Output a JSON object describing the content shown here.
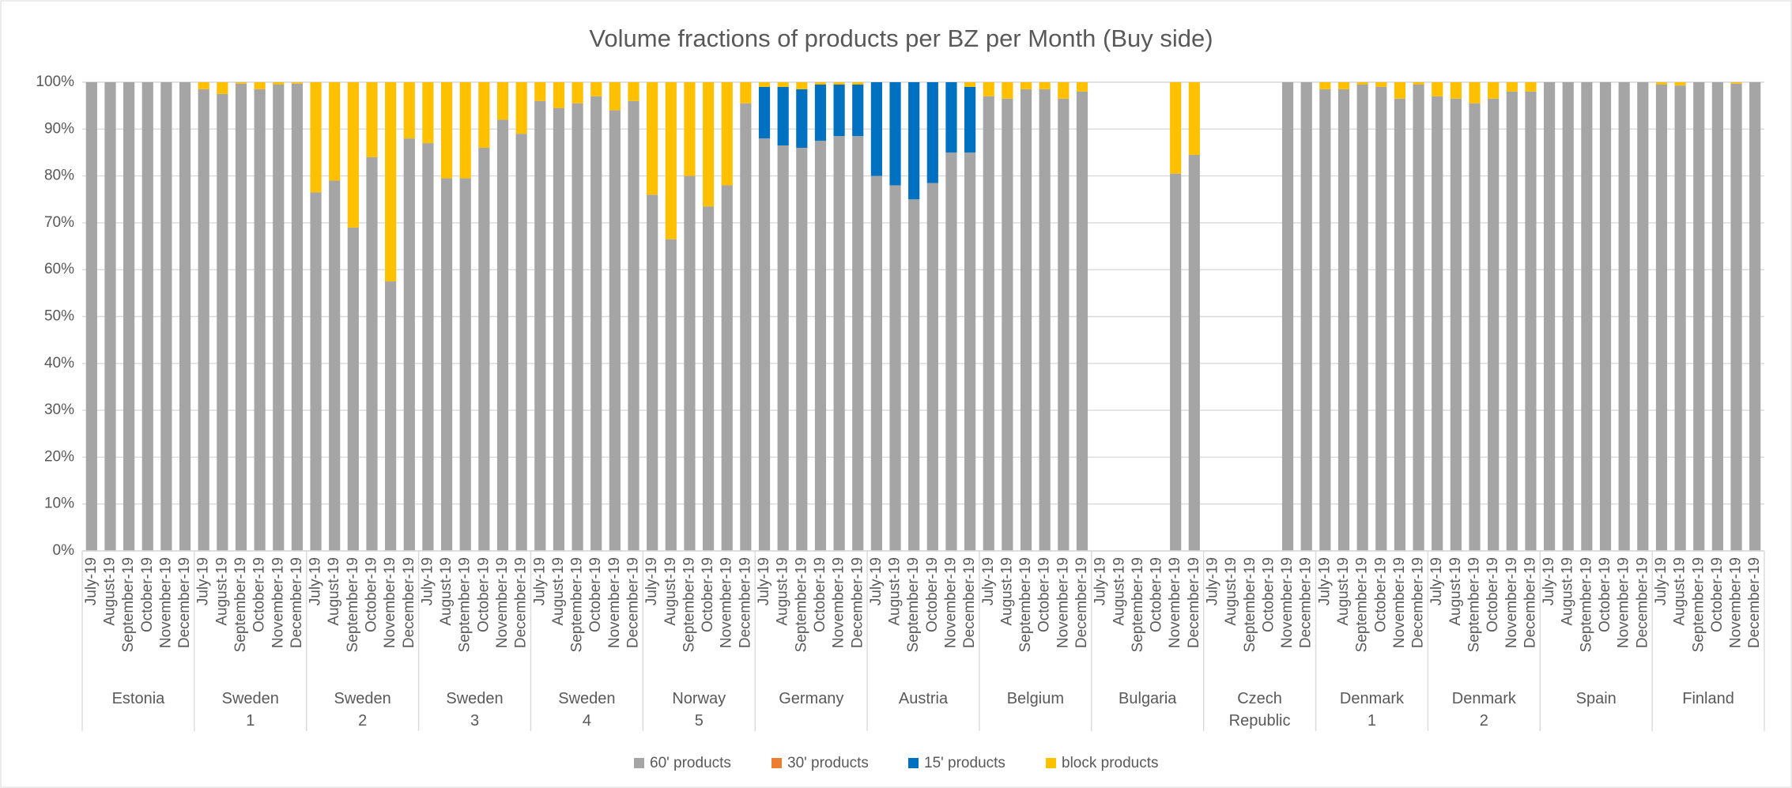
{
  "chart_data": {
    "type": "stacked_bar",
    "title": "Volume fractions of products per BZ per Month (Buy side)",
    "groups": [
      "Estonia",
      "Sweden 1",
      "Sweden 2",
      "Sweden 3",
      "Sweden 4",
      "Norway 5",
      "Germany",
      "Austria",
      "Belgium",
      "Bulgaria",
      "Czech Republic",
      "Denmark 1",
      "Denmark 2",
      "Spain",
      "Finland"
    ],
    "categories": [
      "July-19",
      "August-19",
      "September-19",
      "October-19",
      "November-19",
      "December-19",
      "July-19",
      "August-19",
      "September-19",
      "October-19",
      "November-19",
      "December-19",
      "July-19",
      "August-19",
      "September-19",
      "October-19",
      "November-19",
      "December-19",
      "July-19",
      "August-19",
      "September-19",
      "October-19",
      "November-19",
      "December-19",
      "July-19",
      "August-19",
      "September-19",
      "October-19",
      "November-19",
      "December-19",
      "July-19",
      "August-19",
      "September-19",
      "October-19",
      "November-19",
      "December-19",
      "July-19",
      "August-19",
      "September-19",
      "October-19",
      "November-19",
      "December-19",
      "July-19",
      "August-19",
      "September-19",
      "October-19",
      "November-19",
      "December-19",
      "July-19",
      "August-19",
      "September-19",
      "October-19",
      "November-19",
      "December-19",
      "July-19",
      "August-19",
      "September-19",
      "October-19",
      "November-19",
      "December-19",
      "July-19",
      "August-19",
      "September-19",
      "October-19",
      "November-19",
      "December-19",
      "July-19",
      "August-19",
      "September-19",
      "October-19",
      "November-19",
      "December-19",
      "July-19",
      "August-19",
      "September-19",
      "October-19",
      "November-19",
      "December-19",
      "July-19",
      "August-19",
      "September-19",
      "October-19",
      "November-19",
      "December-19",
      "July-19",
      "August-19",
      "September-19",
      "October-19",
      "November-19",
      "December-19"
    ],
    "series": [
      {
        "name": "60' products",
        "color": "#a5a5a5",
        "values": [
          100,
          100,
          100,
          100,
          100,
          100,
          98.5,
          97.5,
          99.7,
          98.5,
          99.5,
          99.7,
          76.5,
          79,
          69,
          84,
          57.5,
          88,
          87,
          79.5,
          79.5,
          86,
          92,
          89,
          96,
          94.5,
          95.5,
          97,
          94,
          96,
          76,
          66.5,
          80,
          73.5,
          78,
          95.5,
          88,
          86.5,
          86,
          87.5,
          88.5,
          88.5,
          80,
          78,
          75,
          78.5,
          85,
          85,
          97,
          96.5,
          98.5,
          98.5,
          96.5,
          98,
          null,
          null,
          null,
          null,
          80.5,
          84.5,
          null,
          null,
          null,
          null,
          100,
          100,
          98.5,
          98.5,
          99.5,
          99,
          96.5,
          99.5,
          97,
          96.5,
          95.5,
          96.5,
          98,
          98,
          100,
          100,
          100,
          100,
          100,
          100,
          99.5,
          99.3,
          100,
          100,
          99.7,
          100
        ]
      },
      {
        "name": "30' products",
        "color": "#ed7d31",
        "values": [
          0,
          0,
          0,
          0,
          0,
          0,
          0,
          0,
          0,
          0,
          0,
          0,
          0,
          0,
          0,
          0,
          0,
          0,
          0,
          0,
          0,
          0,
          0,
          0,
          0,
          0,
          0,
          0,
          0,
          0,
          0,
          0,
          0,
          0,
          0,
          0,
          0,
          0,
          0,
          0,
          0,
          0,
          0,
          0,
          0,
          0,
          0,
          0,
          0,
          0,
          0,
          0,
          0,
          0,
          null,
          null,
          null,
          null,
          0,
          0,
          null,
          null,
          null,
          null,
          0,
          0,
          0,
          0,
          0,
          0,
          0,
          0,
          0,
          0,
          0,
          0,
          0,
          0,
          0,
          0,
          0,
          0,
          0,
          0,
          0,
          0,
          0,
          0,
          0,
          0
        ]
      },
      {
        "name": "15' products",
        "color": "#0070c0",
        "values": [
          0,
          0,
          0,
          0,
          0,
          0,
          0,
          0,
          0,
          0,
          0,
          0,
          0,
          0,
          0,
          0,
          0,
          0,
          0,
          0,
          0,
          0,
          0,
          0,
          0,
          0,
          0,
          0,
          0,
          0,
          0,
          0,
          0,
          0,
          0,
          0,
          11,
          12.5,
          12.5,
          12,
          11,
          11,
          20,
          22,
          25,
          21.5,
          15,
          14,
          0,
          0,
          0,
          0,
          0,
          0,
          null,
          null,
          null,
          null,
          0,
          0,
          null,
          null,
          null,
          null,
          0,
          0,
          0,
          0,
          0,
          0,
          0,
          0,
          0,
          0,
          0,
          0,
          0,
          0,
          0,
          0,
          0,
          0,
          0,
          0,
          0,
          0,
          0,
          0,
          0,
          0
        ]
      },
      {
        "name": "block products",
        "color": "#ffc000",
        "values": [
          0,
          0,
          0,
          0,
          0,
          0,
          1.5,
          2.5,
          0.3,
          1.5,
          0.5,
          0.3,
          23.5,
          21,
          31,
          16,
          42.5,
          12,
          13,
          20.5,
          20.5,
          14,
          8,
          11,
          4,
          5.5,
          4.5,
          3,
          6,
          4,
          24,
          33.5,
          20,
          26.5,
          22,
          4.5,
          1,
          1,
          1.5,
          0.5,
          0.5,
          0.5,
          0,
          0,
          0,
          0,
          0,
          1,
          3,
          3.5,
          1.5,
          1.5,
          3.5,
          2,
          null,
          null,
          null,
          null,
          19.5,
          15.5,
          null,
          null,
          null,
          null,
          0,
          0,
          1.5,
          1.5,
          0.5,
          1,
          3.5,
          0.5,
          3,
          3.5,
          4.5,
          3.5,
          2,
          2,
          0,
          0,
          0,
          0,
          0,
          0,
          0.5,
          0.7,
          0,
          0,
          0.3,
          0
        ]
      }
    ],
    "ylim": [
      0,
      100
    ],
    "yticks": [
      {
        "value": 0,
        "label": "0%"
      },
      {
        "value": 10,
        "label": "10%"
      },
      {
        "value": 20,
        "label": "20%"
      },
      {
        "value": 30,
        "label": "30%"
      },
      {
        "value": 40,
        "label": "40%"
      },
      {
        "value": 50,
        "label": "50%"
      },
      {
        "value": 60,
        "label": "60%"
      },
      {
        "value": 70,
        "label": "70%"
      },
      {
        "value": 80,
        "label": "80%"
      },
      {
        "value": 90,
        "label": "90%"
      },
      {
        "value": 100,
        "label": "100%"
      }
    ],
    "grid": true,
    "legend": "bottom"
  }
}
